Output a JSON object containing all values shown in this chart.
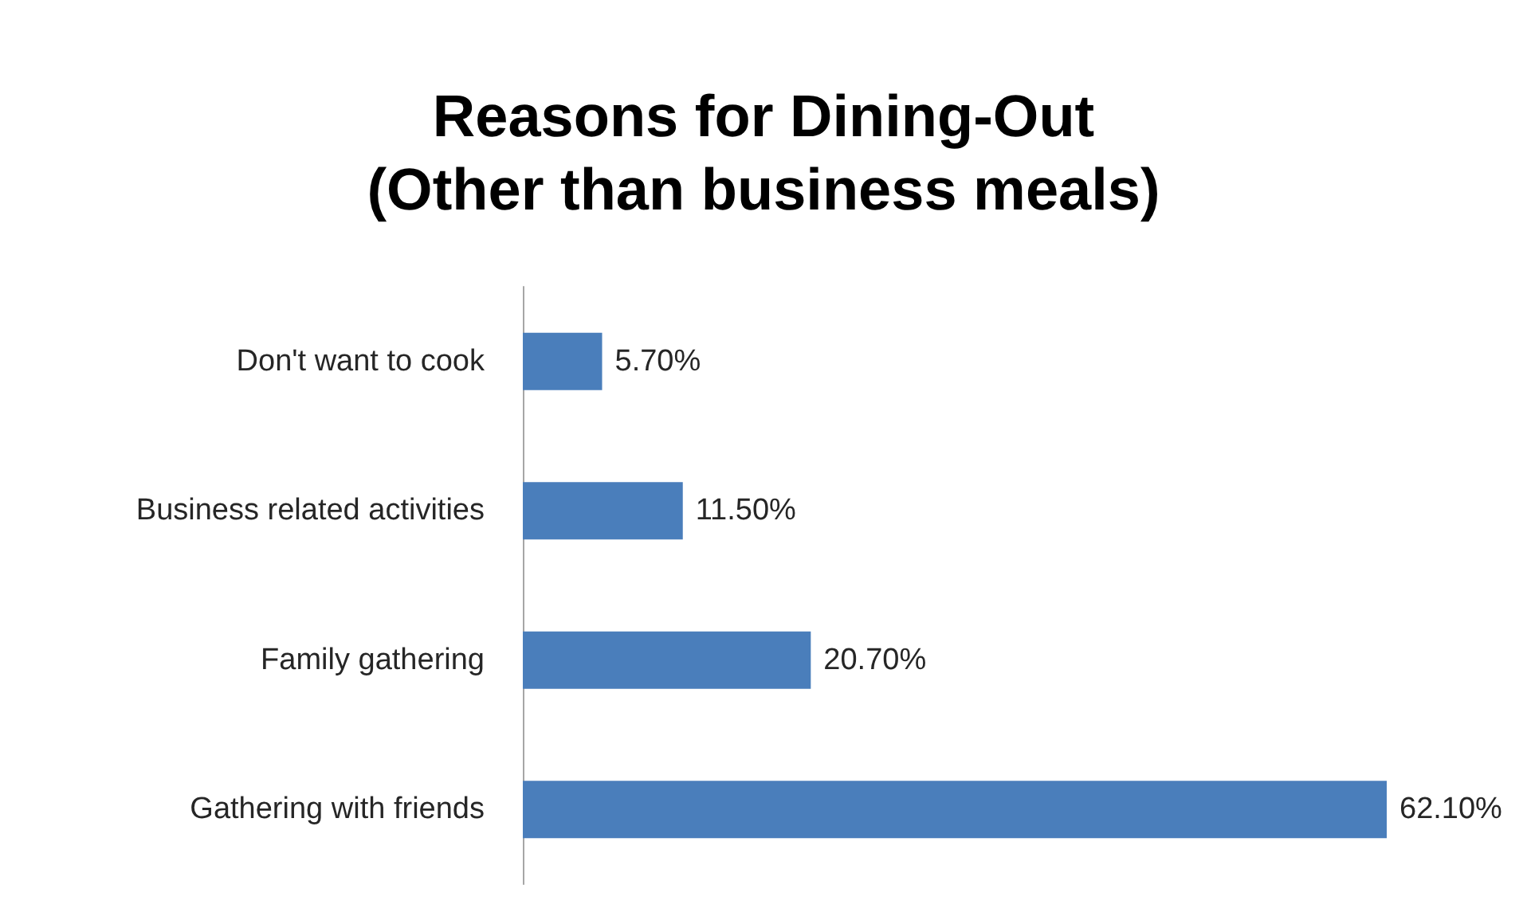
{
  "chart_data": {
    "type": "bar",
    "orientation": "horizontal",
    "title": "Reasons for Dining-Out\n(Other than business meals)",
    "categories": [
      "Don't want to cook",
      "Business related activities",
      "Family gathering",
      "Gathering with friends"
    ],
    "values": [
      5.7,
      11.5,
      20.7,
      62.1
    ],
    "color": "#4a7ebb",
    "value_labels": [
      "5.70%",
      "11.50%",
      "20.70%",
      "62.10%"
    ]
  }
}
